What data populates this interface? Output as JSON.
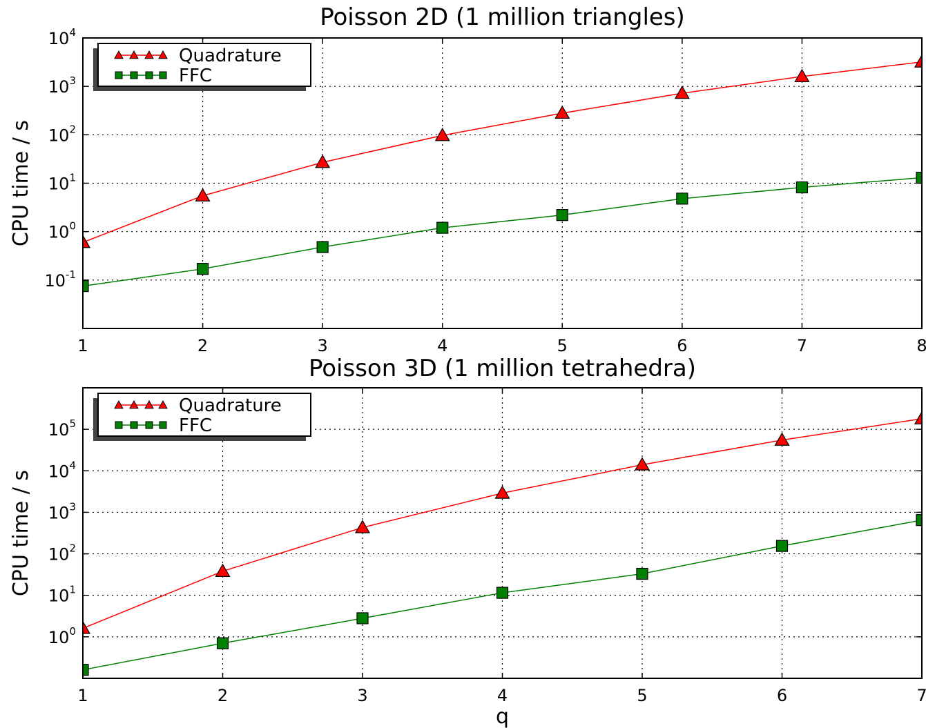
{
  "chart_data": [
    {
      "type": "line",
      "title": "Poisson 2D (1 million triangles)",
      "xlabel": "",
      "ylabel": "CPU time / s",
      "yscale": "log",
      "xlim": [
        1,
        8
      ],
      "ylim_exp": [
        -2,
        4
      ],
      "x_ticks": [
        "1",
        "2",
        "3",
        "4",
        "5",
        "6",
        "7",
        "8"
      ],
      "y_tick_exponents": [
        "-1",
        "0",
        "1",
        "2",
        "3",
        "4"
      ],
      "grid": true,
      "legend_position": "top-left",
      "x": [
        1,
        2,
        3,
        4,
        5,
        6,
        7,
        8
      ],
      "series": [
        {
          "name": "Quadrature",
          "color": "#ff0000",
          "marker": "triangle",
          "values": [
            0.6,
            5.5,
            27,
            97,
            280,
            720,
            1600,
            3200
          ]
        },
        {
          "name": "FFC",
          "color": "#008000",
          "marker": "square",
          "values": [
            0.075,
            0.17,
            0.48,
            1.2,
            2.2,
            4.8,
            8.2,
            13
          ]
        }
      ]
    },
    {
      "type": "line",
      "title": "Poisson 3D (1 million tetrahedra)",
      "xlabel": "q",
      "ylabel": "CPU time / s",
      "yscale": "log",
      "xlim": [
        1,
        7
      ],
      "ylim_exp": [
        -1,
        6
      ],
      "x_ticks": [
        "1",
        "2",
        "3",
        "4",
        "5",
        "6",
        "7"
      ],
      "y_tick_exponents": [
        "0",
        "1",
        "2",
        "3",
        "4",
        "5"
      ],
      "grid": true,
      "legend_position": "top-left",
      "x": [
        1,
        2,
        3,
        4,
        5,
        6,
        7
      ],
      "series": [
        {
          "name": "Quadrature",
          "color": "#ff0000",
          "marker": "triangle",
          "values": [
            1.6,
            38,
            430,
            2900,
            14000,
            55000,
            180000
          ]
        },
        {
          "name": "FFC",
          "color": "#008000",
          "marker": "square",
          "values": [
            0.16,
            0.7,
            2.8,
            11.5,
            33,
            155,
            650
          ]
        }
      ]
    }
  ]
}
